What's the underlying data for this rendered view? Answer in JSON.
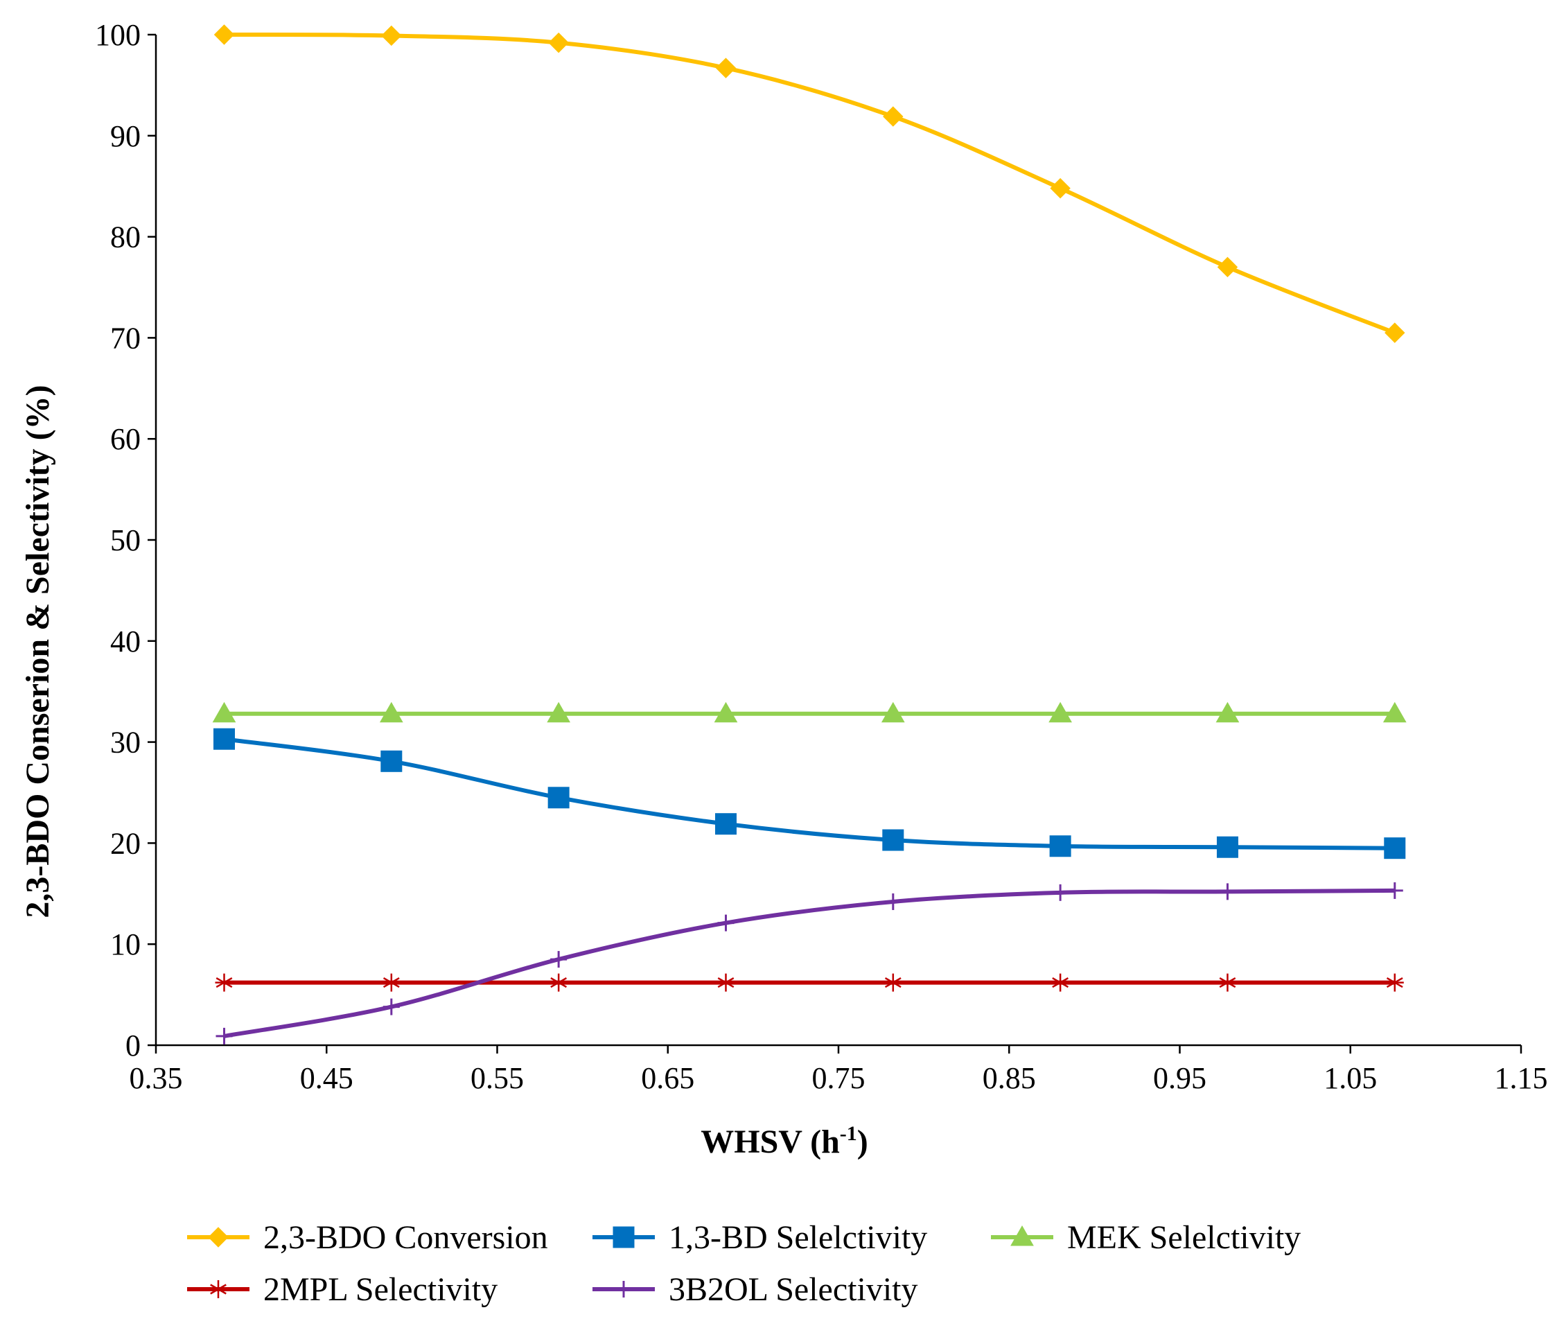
{
  "chart_data": {
    "type": "line",
    "title": "",
    "xlabel": "WHSV (h",
    "xlabel_sup": "-1",
    "xlabel_close": ")",
    "ylabel": "2,3-BDO Conserion & Selectivity (%)",
    "xlim": [
      0.35,
      1.15
    ],
    "ylim": [
      0,
      100
    ],
    "xticks": [
      "0.35",
      "0.45",
      "0.55",
      "0.65",
      "0.75",
      "0.85",
      "0.95",
      "1.05",
      "1.15"
    ],
    "yticks": [
      "0",
      "10",
      "20",
      "30",
      "40",
      "50",
      "60",
      "70",
      "80",
      "90",
      "100"
    ],
    "grid": false,
    "legend_position": "bottom",
    "x": [
      0.39,
      0.488,
      0.586,
      0.684,
      0.782,
      0.88,
      0.978,
      1.076
    ],
    "series": [
      {
        "name": "2,3-BDO Conversion",
        "color": "#FFC000",
        "marker": "diamond",
        "values": [
          100,
          99.9,
          99.2,
          96.7,
          91.9,
          84.8,
          77.0,
          70.5
        ]
      },
      {
        "name": "1,3-BD Selelctivity",
        "color": "#0070C0",
        "marker": "square",
        "values": [
          30.3,
          28.1,
          24.5,
          21.9,
          20.3,
          19.7,
          19.6,
          19.5
        ]
      },
      {
        "name": "MEK Selelctivity",
        "color": "#92D050",
        "marker": "triangle",
        "values": [
          32.8,
          32.8,
          32.8,
          32.8,
          32.8,
          32.8,
          32.8,
          32.8
        ]
      },
      {
        "name": "2MPL Selectivity",
        "color": "#C00000",
        "marker": "star",
        "values": [
          6.2,
          6.2,
          6.2,
          6.2,
          6.2,
          6.2,
          6.2,
          6.2
        ]
      },
      {
        "name": "3B2OL Selectivity",
        "color": "#7030A0",
        "marker": "plus",
        "values": [
          0.9,
          3.8,
          8.5,
          12.1,
          14.2,
          15.1,
          15.2,
          15.3
        ]
      }
    ]
  }
}
